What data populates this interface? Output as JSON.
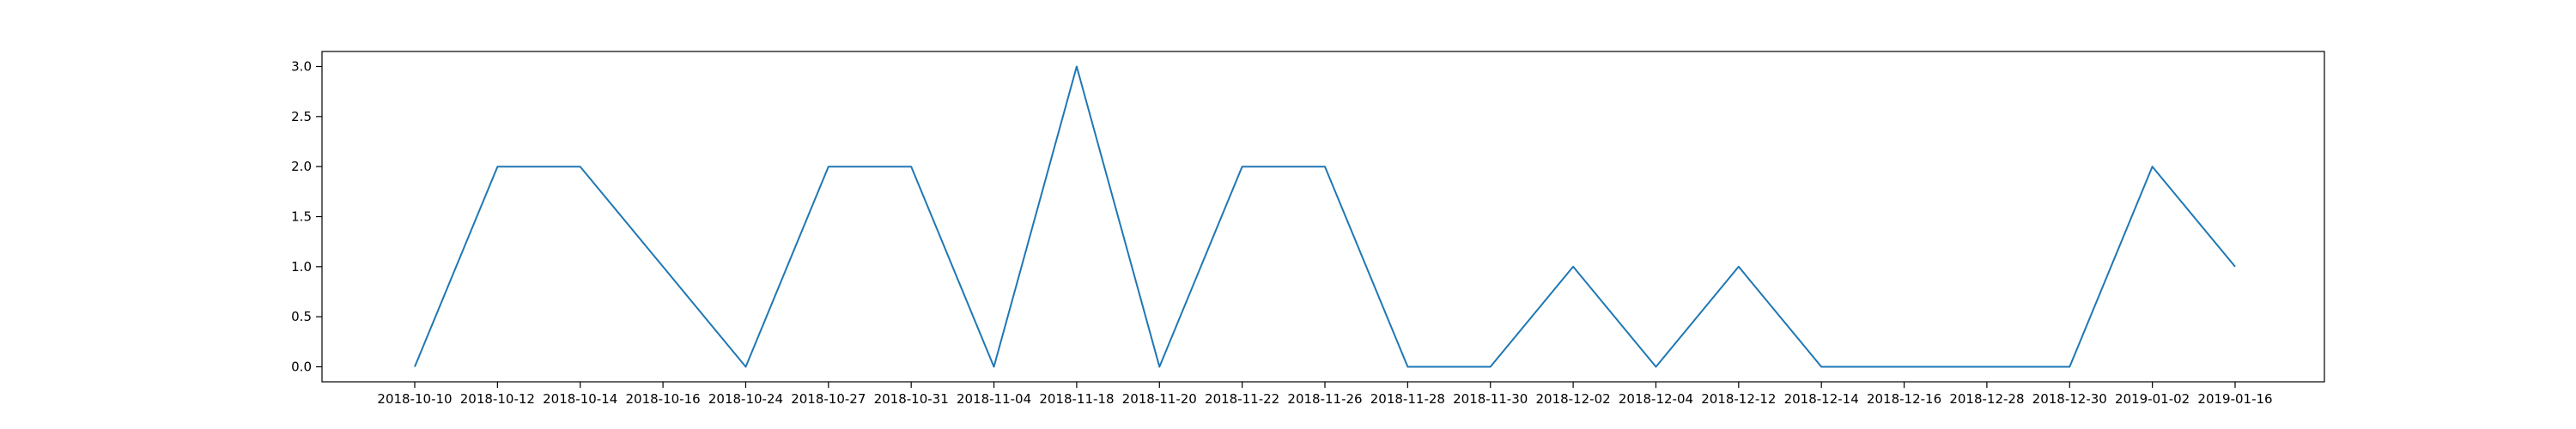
{
  "chart_data": {
    "type": "line",
    "title": "",
    "xlabel": "",
    "ylabel": "",
    "categories": [
      "2018-10-10",
      "2018-10-12",
      "2018-10-14",
      "2018-10-16",
      "2018-10-24",
      "2018-10-27",
      "2018-10-31",
      "2018-11-04",
      "2018-11-18",
      "2018-11-20",
      "2018-11-22",
      "2018-11-26",
      "2018-11-28",
      "2018-11-30",
      "2018-12-02",
      "2018-12-04",
      "2018-12-12",
      "2018-12-14",
      "2018-12-16",
      "2018-12-28",
      "2018-12-30",
      "2019-01-02",
      "2019-01-16"
    ],
    "series": [
      {
        "values": [
          0,
          2,
          2,
          1,
          0,
          2,
          2,
          0,
          3,
          0,
          2,
          2,
          0,
          0,
          1,
          0,
          1,
          0,
          0,
          0,
          0,
          2,
          1
        ],
        "color": "#1f77b4"
      }
    ],
    "ylim": [
      -0.15,
      3.15
    ],
    "yticks": [
      0.0,
      0.5,
      1.0,
      1.5,
      2.0,
      2.5,
      3.0
    ],
    "ytick_labels": [
      "0.0",
      "0.5",
      "1.0",
      "1.5",
      "2.0",
      "2.5",
      "3.0"
    ],
    "grid": false,
    "legend": "none"
  }
}
